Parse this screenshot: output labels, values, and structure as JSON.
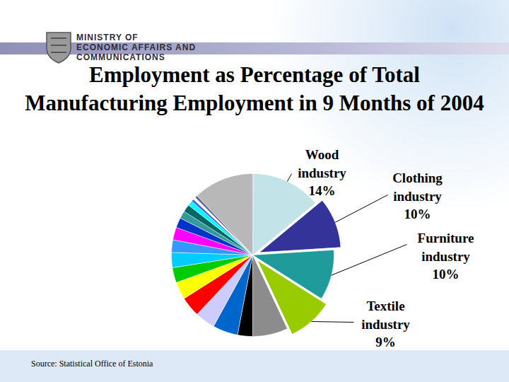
{
  "header": {
    "lines": [
      "MINISTRY OF",
      "ECONOMIC AFFAIRS AND",
      "COMMUNICATIONS"
    ]
  },
  "chart_data": {
    "type": "pie",
    "title": "Employment as Percentage of Total Manufacturing Employment in 9 Months of 2004",
    "source": "Source: Statistical Office of Estonia",
    "categories": [
      "Wood industry",
      "Clothing industry",
      "Furniture industry",
      "Textile industry",
      null,
      null,
      null,
      null,
      null,
      null,
      null,
      null,
      null,
      null,
      null,
      null,
      null,
      null,
      null,
      null,
      null,
      null
    ],
    "values": [
      14,
      10,
      10,
      9,
      7,
      3,
      5,
      4,
      4,
      3.5,
      3,
      3,
      2.5,
      2.5,
      2,
      1.5,
      1.5,
      1,
      0.5,
      0.5,
      0.5,
      12
    ],
    "value_labels": [
      "14%",
      "10%",
      "10%",
      "9%",
      null,
      null,
      null,
      null,
      null,
      null,
      null,
      null,
      null,
      null,
      null,
      null,
      null,
      null,
      null,
      null,
      null,
      null
    ],
    "colors": [
      "#c2e3e8",
      "#33339a",
      "#1f9b9b",
      "#99cc00",
      "#8c8c8c",
      "#000000",
      "#0066cc",
      "#ccccff",
      "#ff0000",
      "#ffff00",
      "#00cc00",
      "#00ccff",
      "#3399ff",
      "#ff00ff",
      "#0033cc",
      "#339999",
      "#006666",
      "#00ffff",
      "#3366ff",
      "#ffffff",
      "#666699",
      "#b8b8b8"
    ],
    "data_labels": true
  }
}
